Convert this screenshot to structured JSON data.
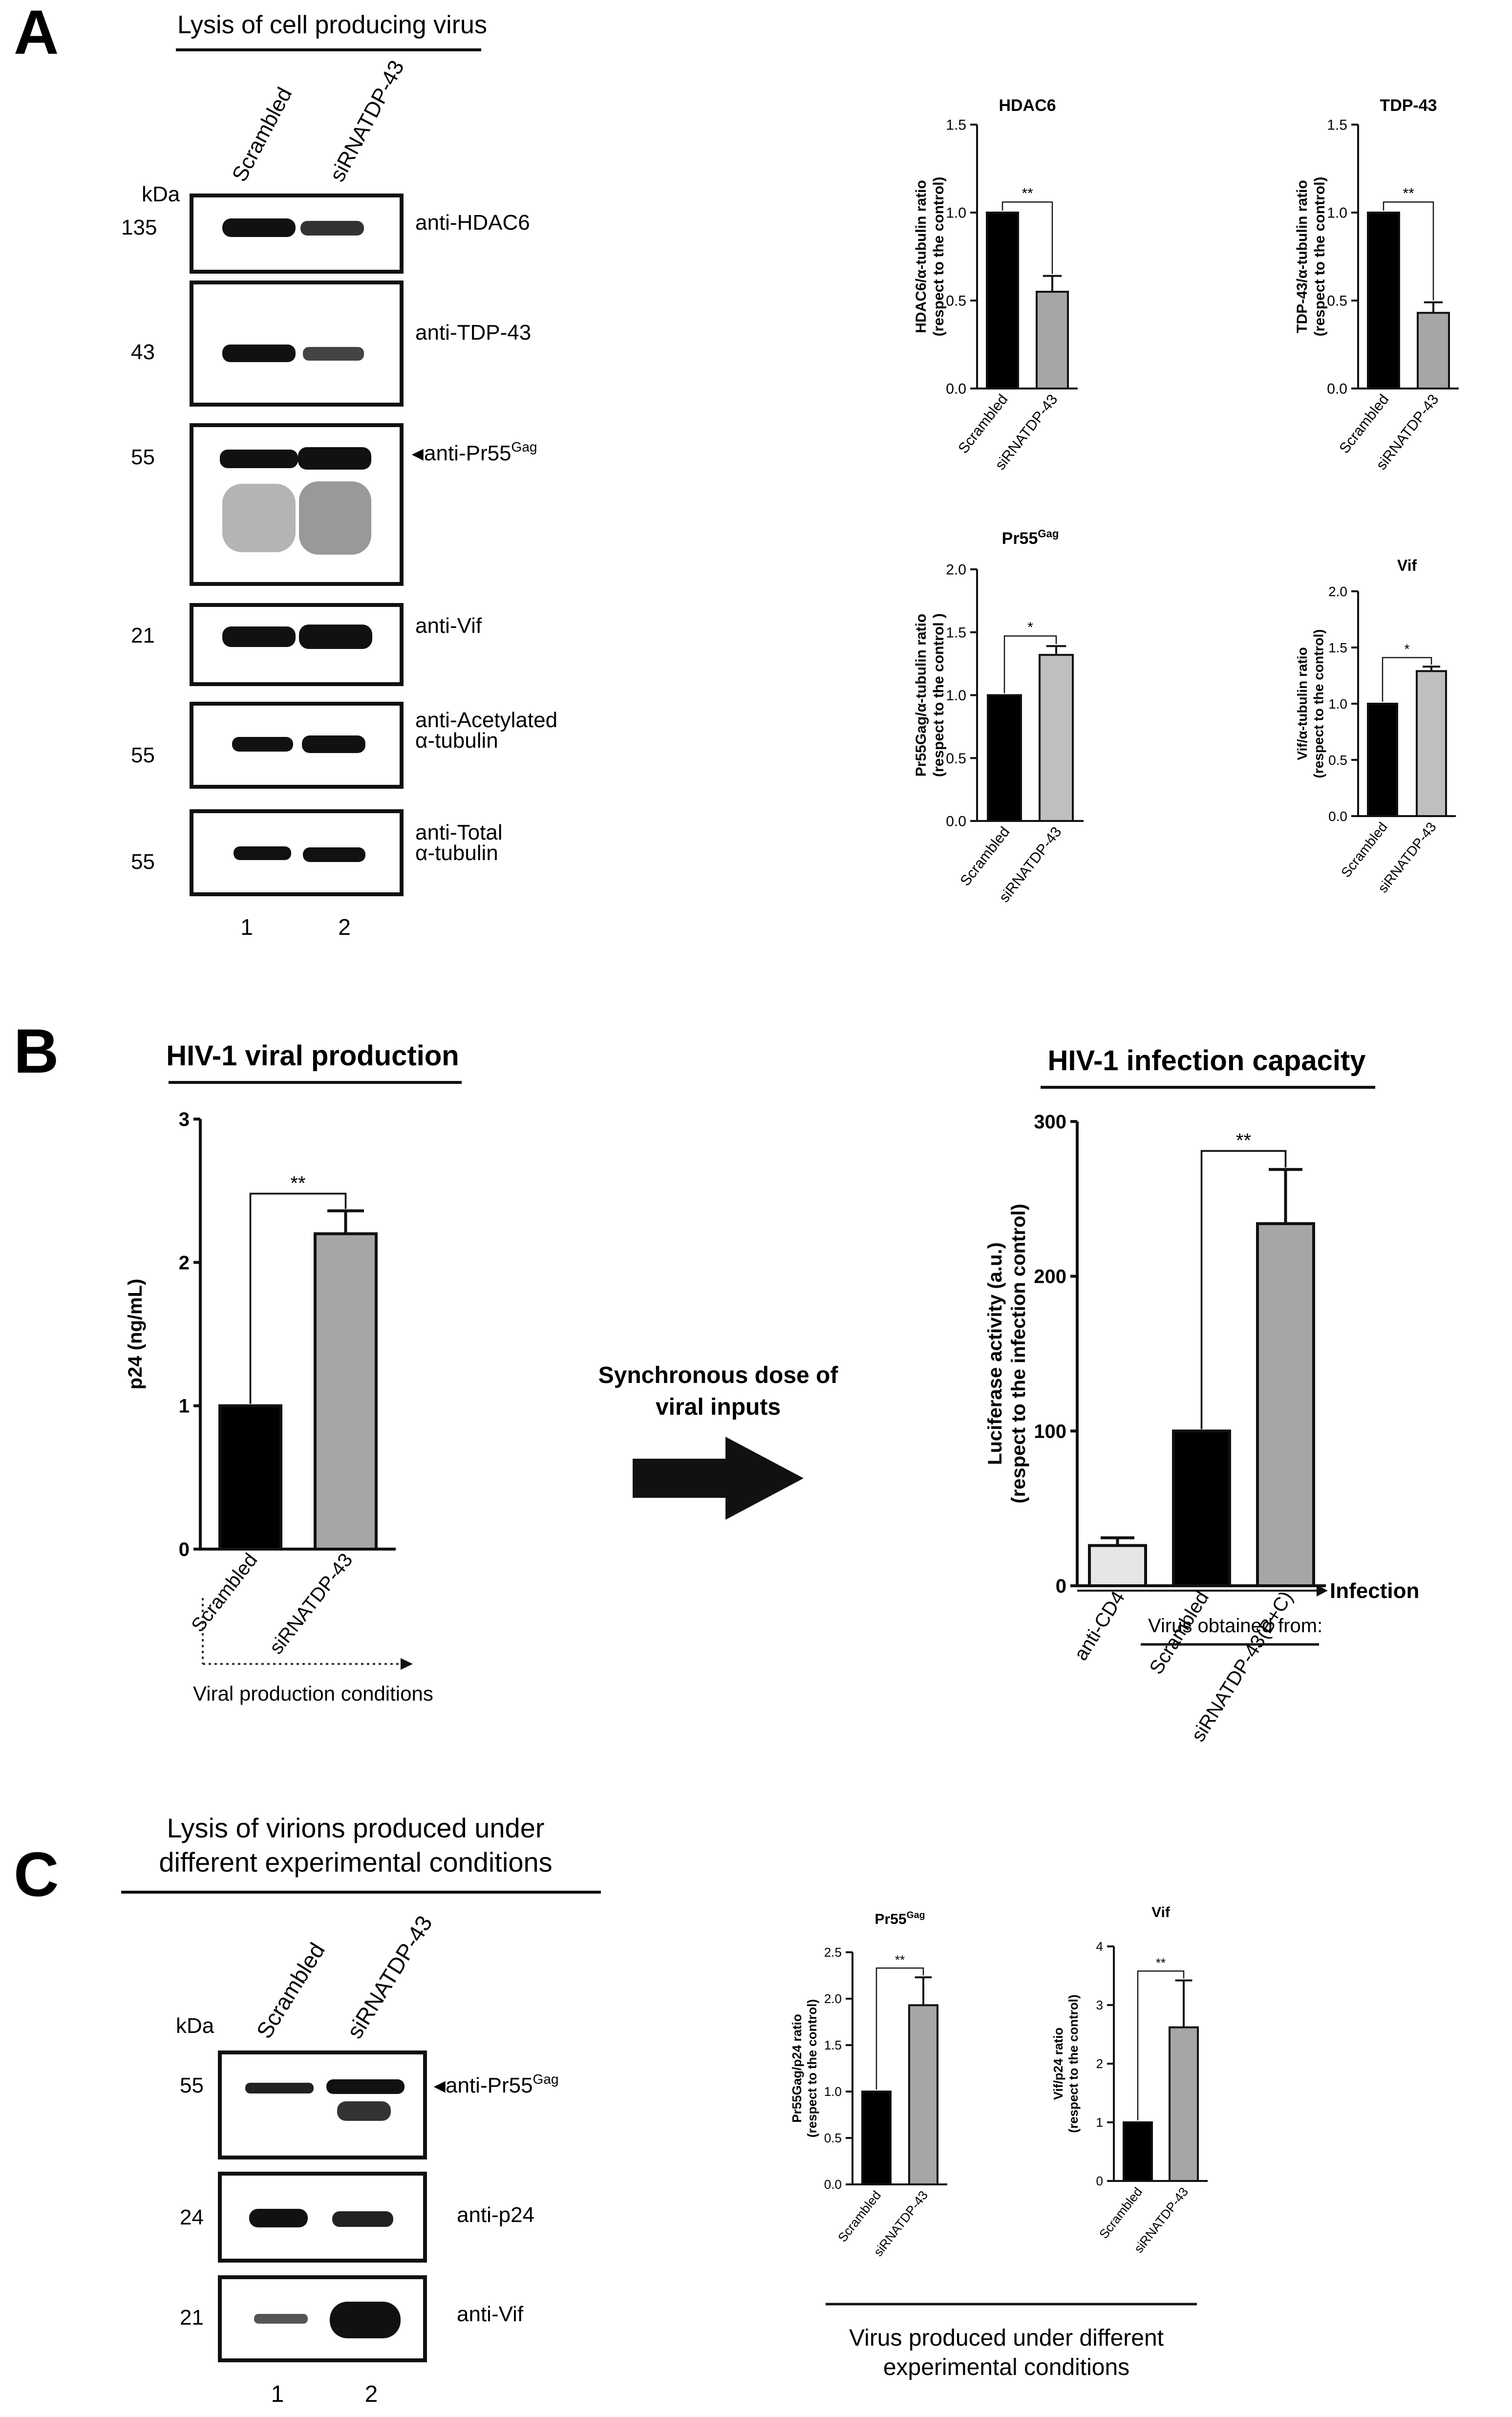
{
  "panels": {
    "A": {
      "letter": "A",
      "title": "Lysis of cell producing virus",
      "lane_labels": [
        "Scrambled",
        "siRNATDP-43"
      ],
      "kda_label": "kDa",
      "lane_numbers": [
        "1",
        "2"
      ],
      "blots": [
        {
          "mw": "135",
          "antibody": "anti-HDAC6"
        },
        {
          "mw": "43",
          "antibody": "anti-TDP-43"
        },
        {
          "mw": "55",
          "antibody": "anti-Pr55",
          "sup": "Gag",
          "arrow": true
        },
        {
          "mw": "21",
          "antibody": "anti-Vif"
        },
        {
          "mw": "55",
          "antibody": "anti-Acetylated",
          "antibody_line2": "α-tubulin"
        },
        {
          "mw": "55",
          "antibody": "anti-Total",
          "antibody_line2": "α-tubulin"
        }
      ]
    },
    "B": {
      "letter": "B",
      "left_title": "HIV-1 viral production",
      "middle_text_line1": "Synchronous dose of",
      "middle_text_line2": "viral inputs",
      "right_title": "HIV-1 infection capacity",
      "viral_production_conditions": "Viral production conditions",
      "infection_label": "Infection",
      "virus_obtained_from": "Virus obtained from:"
    },
    "C": {
      "letter": "C",
      "title_line1": "Lysis of virions produced under",
      "title_line2": "different experimental conditions",
      "lane_labels": [
        "Scrambled",
        "siRNATDP-43"
      ],
      "kda_label": "kDa",
      "lane_numbers": [
        "1",
        "2"
      ],
      "blots": [
        {
          "mw": "55",
          "antibody": "anti-Pr55",
          "sup": "Gag",
          "arrow": true
        },
        {
          "mw": "24",
          "antibody": "anti-p24"
        },
        {
          "mw": "21",
          "antibody": "anti-Vif"
        }
      ],
      "bottom_caption_line1": "Virus produced under different",
      "bottom_caption_line2": "experimental conditions"
    }
  },
  "chart_data": [
    {
      "id": "A-HDAC6",
      "type": "bar",
      "title": "HDAC6",
      "ylabel": "HDAC6/α-tubulin ratio",
      "ylabel2": "(respect to the control)",
      "categories": [
        "Scrambled",
        "siRNATDP-43"
      ],
      "values": [
        1.0,
        0.55
      ],
      "errors": [
        0,
        0.09
      ],
      "colors": [
        "#000000",
        "#a6a6a6"
      ],
      "ylim": [
        0,
        1.5
      ],
      "yticks": [
        "0.0",
        "0.5",
        "1.0",
        "1.5"
      ],
      "significance": "**"
    },
    {
      "id": "A-TDP43",
      "type": "bar",
      "title": "TDP-43",
      "ylabel": "TDP-43/α-tubulin ratio",
      "ylabel2": "(respect to the control)",
      "categories": [
        "Scrambled",
        "siRNATDP-43"
      ],
      "values": [
        1.0,
        0.43
      ],
      "errors": [
        0,
        0.06
      ],
      "colors": [
        "#000000",
        "#a6a6a6"
      ],
      "ylim": [
        0,
        1.5
      ],
      "yticks": [
        "0.0",
        "0.5",
        "1.0",
        "1.5"
      ],
      "significance": "**"
    },
    {
      "id": "A-Pr55",
      "type": "bar",
      "title": "Pr55",
      "title_sup": "Gag",
      "ylabel": "Pr55Gag/α-tubulin ratio",
      "ylabel2": "(respect to the control )",
      "categories": [
        "Scrambled",
        "siRNATDP-43"
      ],
      "values": [
        1.0,
        1.32
      ],
      "errors": [
        0,
        0.07
      ],
      "colors": [
        "#000000",
        "#bfbfbf"
      ],
      "ylim": [
        0,
        2.0
      ],
      "yticks": [
        "0.0",
        "0.5",
        "1.0",
        "1.5",
        "2.0"
      ],
      "significance": "*"
    },
    {
      "id": "A-Vif",
      "type": "bar",
      "title": "Vif",
      "ylabel": "Vif/α-tubulin ratio",
      "ylabel2": "(respect to the control)",
      "categories": [
        "Scrambled",
        "siRNATDP-43"
      ],
      "values": [
        1.0,
        1.29
      ],
      "errors": [
        0,
        0.04
      ],
      "colors": [
        "#000000",
        "#bfbfbf"
      ],
      "ylim": [
        0,
        2.0
      ],
      "yticks": [
        "0.0",
        "0.5",
        "1.0",
        "1.5",
        "2.0"
      ],
      "significance": "*"
    },
    {
      "id": "B-production",
      "type": "bar",
      "ylabel": "p24 (ng/mL)",
      "categories": [
        "Scrambled",
        "siRNATDP-43"
      ],
      "values": [
        1.0,
        2.2
      ],
      "errors": [
        0,
        0.16
      ],
      "colors": [
        "#000000",
        "#a6a6a6"
      ],
      "ylim": [
        0,
        3
      ],
      "yticks": [
        "0",
        "1",
        "2",
        "3"
      ],
      "significance": "**"
    },
    {
      "id": "B-infection",
      "type": "bar",
      "ylabel": "Luciferase activity (a.u.)",
      "ylabel2": "(respect to the infection control)",
      "categories": [
        "anti-CD4",
        "Scrambled",
        "siRNATDP-43(B+C)"
      ],
      "values": [
        26,
        100,
        234
      ],
      "errors": [
        5,
        0,
        35
      ],
      "colors": [
        "#e6e6e6",
        "#000000",
        "#a6a6a6"
      ],
      "ylim": [
        0,
        300
      ],
      "yticks": [
        "0",
        "100",
        "200",
        "300"
      ],
      "significance": "**"
    },
    {
      "id": "C-Pr55",
      "type": "bar",
      "title": "Pr55",
      "title_sup": "Gag",
      "ylabel": "Pr55Gag/p24 ratio",
      "ylabel2": "(respect to the control)",
      "categories": [
        "Scrambled",
        "siRNATDP-43"
      ],
      "values": [
        1.0,
        1.93
      ],
      "errors": [
        0,
        0.3
      ],
      "colors": [
        "#000000",
        "#a6a6a6"
      ],
      "ylim": [
        0,
        2.5
      ],
      "yticks": [
        "0.0",
        "0.5",
        "1.0",
        "1.5",
        "2.0",
        "2.5"
      ],
      "significance": "**"
    },
    {
      "id": "C-Vif",
      "type": "bar",
      "title": "Vif",
      "ylabel": "Vif/p24 ratio",
      "ylabel2": "(respect to the control)",
      "categories": [
        "Scrambled",
        "siRNATDP-43"
      ],
      "values": [
        1.0,
        2.62
      ],
      "errors": [
        0,
        0.8
      ],
      "colors": [
        "#000000",
        "#a6a6a6"
      ],
      "ylim": [
        0,
        4
      ],
      "yticks": [
        "0",
        "1",
        "2",
        "3",
        "4"
      ],
      "significance": "**"
    }
  ]
}
